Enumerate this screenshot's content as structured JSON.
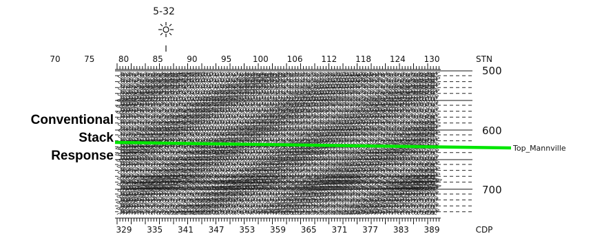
{
  "side_label": [
    "Conventional",
    "Stack",
    "Response"
  ],
  "well": {
    "label": "5-32",
    "icon": "well-symbol-icon"
  },
  "stn_axis": {
    "name": "STN",
    "ticks": [
      "70",
      "75",
      "80",
      "85",
      "90",
      "95",
      "100",
      "106",
      "112",
      "118",
      "124",
      "130"
    ]
  },
  "cdp_axis": {
    "name": "CDP",
    "ticks": [
      "329",
      "335",
      "341",
      "347",
      "353",
      "359",
      "365",
      "371",
      "377",
      "383",
      "389"
    ]
  },
  "time_axis": {
    "ticks": [
      "500",
      "600",
      "700"
    ]
  },
  "horizon": {
    "label": "Top_Mannville",
    "color": "#00e600"
  }
}
